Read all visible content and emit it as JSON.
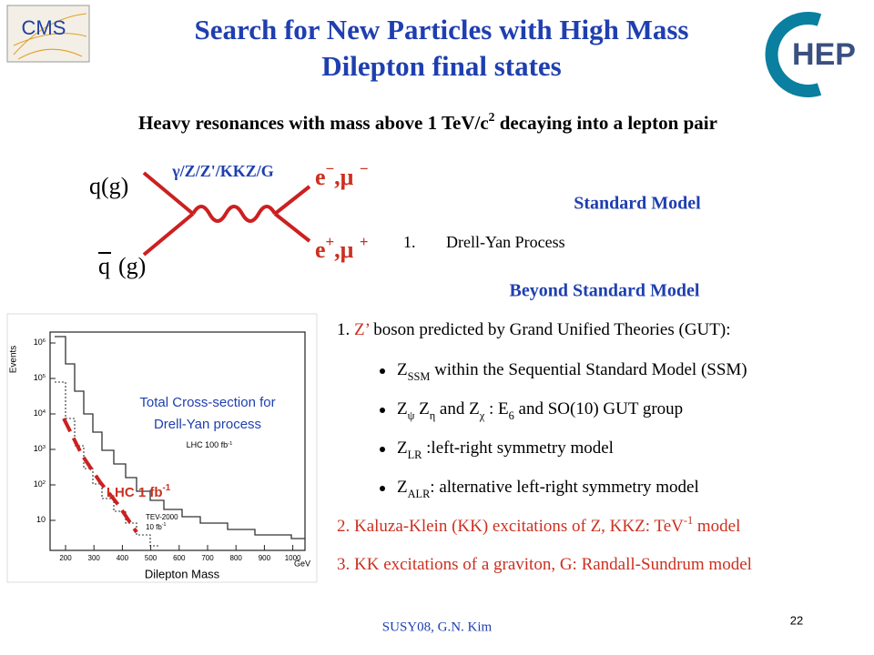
{
  "header": {
    "title_line1": "Search for New Particles with High Mass",
    "title_line2": "Dilepton final states",
    "logo_left": "CMS",
    "logo_right": "HEP"
  },
  "subtitle": {
    "parts": [
      {
        "text": "Heavy resonances with mass above 1 TeV/c"
      },
      {
        "text": "2",
        "style": "sup"
      },
      {
        "text": " decaying into a lepton pair"
      }
    ]
  },
  "diagram": {
    "incoming_top": "q(g)",
    "incoming_bottom_q": "q",
    "incoming_bottom_g": "(g)",
    "propagator": "γ/Z/Z'/KKZ/G",
    "outgoing_top": {
      "parts": [
        {
          "text": "e"
        },
        {
          "text": "−",
          "style": "sup"
        },
        {
          "text": ",μ "
        },
        {
          "text": "−",
          "style": "sup"
        }
      ]
    },
    "outgoing_bottom": {
      "parts": [
        {
          "text": "e"
        },
        {
          "text": "+",
          "style": "sup"
        },
        {
          "text": ",μ "
        },
        {
          "text": "+",
          "style": "sup"
        }
      ]
    }
  },
  "standard_model": {
    "heading": "Standard Model",
    "item_number": "1.",
    "item_text": "Drell-Yan Process"
  },
  "beyond_standard_model": {
    "heading": "Beyond Standard Model",
    "item1": {
      "parts": [
        {
          "text": "1. "
        },
        {
          "text": "Z’",
          "style": "red"
        },
        {
          "text": " boson predicted by Grand Unified Theories (GUT):"
        }
      ]
    },
    "bullets": [
      {
        "parts": [
          {
            "text": "Z"
          },
          {
            "text": "SSM",
            "style": "sub"
          },
          {
            "text": " within the Sequential Standard Model (SSM)"
          }
        ]
      },
      {
        "parts": [
          {
            "text": "Z"
          },
          {
            "text": "ψ",
            "style": "sub"
          },
          {
            "text": " Z"
          },
          {
            "text": "η",
            "style": "sub"
          },
          {
            "text": " and Z"
          },
          {
            "text": "χ",
            "style": "sub"
          },
          {
            "text": " : E"
          },
          {
            "text": "6",
            "style": "sub"
          },
          {
            "text": " and SO(10) GUT group"
          }
        ]
      },
      {
        "parts": [
          {
            "text": "Z"
          },
          {
            "text": "LR",
            "style": "sub"
          },
          {
            "text": " :left-right symmetry model"
          }
        ]
      },
      {
        "parts": [
          {
            "text": "Z"
          },
          {
            "text": "ALR",
            "style": "sub"
          },
          {
            "text": ": alternative left-right symmetry model"
          }
        ]
      }
    ],
    "item2": {
      "parts": [
        {
          "text": "2. Kaluza-Klein (KK) excitations of Z, KKZ: TeV"
        },
        {
          "text": "-1",
          "style": "sup"
        },
        {
          "text": " model"
        }
      ]
    },
    "item3": {
      "parts": [
        {
          "text": "3. KK excitations of a graviton, G: Randall-Sundrum model"
        }
      ]
    }
  },
  "figure": {
    "y_axis_label": "Events",
    "x_axis_label": "Dilepton Mass",
    "x_unit": "GeV",
    "yticks": [
      {
        "parts": [
          {
            "text": "10"
          },
          {
            "text": "6",
            "style": "sup"
          }
        ]
      },
      {
        "parts": [
          {
            "text": "10"
          },
          {
            "text": "5",
            "style": "sup"
          }
        ]
      },
      {
        "parts": [
          {
            "text": "10"
          },
          {
            "text": "4",
            "style": "sup"
          }
        ]
      },
      {
        "parts": [
          {
            "text": "10"
          },
          {
            "text": "3",
            "style": "sup"
          }
        ]
      },
      {
        "parts": [
          {
            "text": "10"
          },
          {
            "text": "2",
            "style": "sup"
          }
        ]
      },
      {
        "parts": [
          {
            "text": "10"
          }
        ]
      }
    ],
    "xticks": [
      "200",
      "300",
      "400",
      "500",
      "600",
      "700",
      "800",
      "900",
      "1000"
    ],
    "curve_label_lhc100": {
      "parts": [
        {
          "text": "LHC 100 fb"
        },
        {
          "text": "-1",
          "style": "sup"
        }
      ]
    },
    "curve_label_tev_1": "TEV-2000",
    "curve_label_tev_2": {
      "parts": [
        {
          "text": "10 fb"
        },
        {
          "text": "-1",
          "style": "sup"
        }
      ]
    },
    "annotation_line1": "Total Cross-section for",
    "annotation_line2": "Drell-Yan process",
    "curve_label_lhc1": {
      "parts": [
        {
          "text": "LHC 1 fb"
        },
        {
          "text": "-1",
          "style": "sup"
        }
      ]
    }
  },
  "footer": {
    "author": "SUSY08, G.N. Kim",
    "page": "22"
  }
}
